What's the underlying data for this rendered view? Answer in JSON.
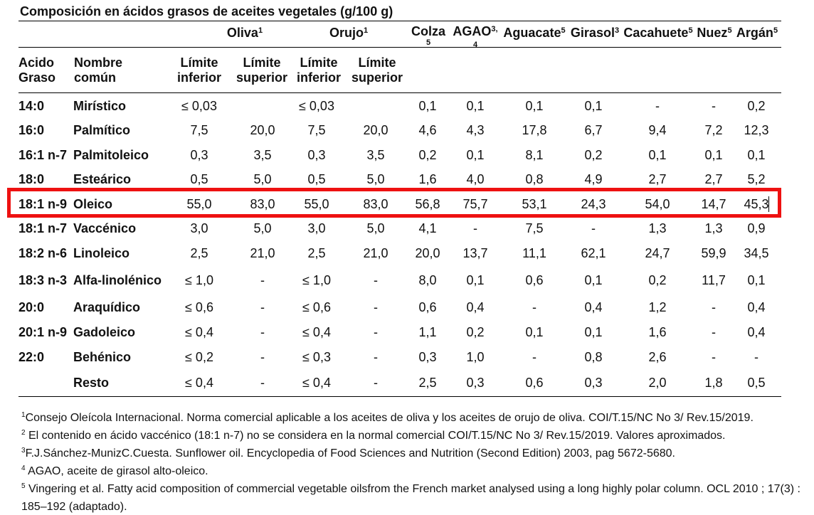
{
  "title": "Composición en ácidos grasos de aceites vegetales (g/100 g)",
  "header": {
    "oliva": {
      "label": "Oliva",
      "sup": "1"
    },
    "orujo": {
      "label": "Orujo",
      "sup": "1"
    },
    "colza": {
      "label": "Colza",
      "sub": "5"
    },
    "agao": {
      "label": "AGAO",
      "sup": "3,",
      "sub": "4"
    },
    "aguacate": {
      "label": "Aguacate",
      "sup": "5"
    },
    "girasol": {
      "label": "Girasol",
      "sup": "3"
    },
    "cacahuete": {
      "label": "Cacahuete",
      "sup": "5"
    },
    "nuez": {
      "label": "Nuez",
      "sup": "5"
    },
    "argan": {
      "label": "Argán",
      "sup": "5"
    },
    "acido1": "Acido",
    "acido2": "Graso",
    "nombre1": "Nombre",
    "nombre2": "común",
    "lim_inf1": "Límite",
    "lim_inf2": "inferior",
    "lim_sup1": "Límite",
    "lim_sup2": "superior"
  },
  "rows": [
    {
      "code": "14:0",
      "name": "Mirístico",
      "v": [
        "≤ 0,03",
        "",
        "≤ 0,03",
        "",
        "0,1",
        "0,1",
        "0,1",
        "0,1",
        "-",
        "-",
        "0,2"
      ]
    },
    {
      "code": "16:0",
      "name": "Palmítico",
      "v": [
        "7,5",
        "20,0",
        "7,5",
        "20,0",
        "4,6",
        "4,3",
        "17,8",
        "6,7",
        "9,4",
        "7,2",
        "12,3"
      ]
    },
    {
      "code": "16:1 n-7",
      "name": "Palmitoleico",
      "v": [
        "0,3",
        "3,5",
        "0,3",
        "3,5",
        "0,2",
        "0,1",
        "8,1",
        "0,2",
        "0,1",
        "0,1",
        "0,1"
      ]
    },
    {
      "code": "18:0",
      "name": "Esteárico",
      "v": [
        "0,5",
        "5,0",
        "0,5",
        "5,0",
        "1,6",
        "4,0",
        "0,8",
        "4,9",
        "2,7",
        "2,7",
        "5,2"
      ]
    },
    {
      "code": "18:1 n-9",
      "name": "Oleico",
      "v": [
        "55,0",
        "83,0",
        "55,0",
        "83,0",
        "56,8",
        "75,7",
        "53,1",
        "24,3",
        "54,0",
        "14,7",
        "45,3"
      ]
    },
    {
      "code": "18:1 n-7",
      "name": "Vaccénico",
      "v": [
        "3,0",
        "5,0",
        "3,0",
        "5,0",
        "4,1",
        "-",
        "7,5",
        "-",
        "1,3",
        "1,3",
        "0,9"
      ]
    },
    {
      "code": "18:2 n-6",
      "name": "Linoleico",
      "v": [
        "2,5",
        "21,0",
        "2,5",
        "21,0",
        "20,0",
        "13,7",
        "11,1",
        "62,1",
        "24,7",
        "59,9",
        "34,5"
      ]
    },
    {
      "code": "18:3 n-3",
      "name": "Alfa-linolénico",
      "v": [
        "≤ 1,0",
        "-",
        "≤ 1,0",
        "-",
        "8,0",
        "0,1",
        "0,6",
        "0,1",
        "0,2",
        "11,7",
        "0,1"
      ]
    },
    {
      "code": "20:0",
      "name": "Araquídico",
      "v": [
        "≤ 0,6",
        "-",
        "≤ 0,6",
        "-",
        "0,6",
        "0,4",
        "-",
        "0,4",
        "1,2",
        "-",
        "0,4"
      ]
    },
    {
      "code": "20:1 n-9",
      "name": "Gadoleico",
      "v": [
        "≤ 0,4",
        "-",
        "≤ 0,4",
        "-",
        "1,1",
        "0,2",
        "0,1",
        "0,1",
        "1,6",
        "-",
        "0,4"
      ]
    },
    {
      "code": "22:0",
      "name": "Behénico",
      "v": [
        "≤ 0,2",
        "-",
        "≤ 0,3",
        "-",
        "0,3",
        "1,0",
        "-",
        "0,8",
        "2,6",
        "-",
        "-"
      ]
    },
    {
      "code": "",
      "name": "Resto",
      "v": [
        "≤ 0,4",
        "-",
        "≤ 0,4",
        "-",
        "2,5",
        "0,3",
        "0,6",
        "0,3",
        "2,0",
        "1,8",
        "0,5"
      ]
    }
  ],
  "footnotes": [
    {
      "sup": "1",
      "text": "Consejo Oleícola Internacional. Norma comercial aplicable a los aceites de oliva y los aceites de orujo de oliva. COI/T.15/NC No 3/ Rev.15/2019."
    },
    {
      "sup": "2",
      "text": " El contenido en ácido vaccénico (18:1 n-7) no se considera en la normal comercial COI/T.15/NC No 3/ Rev.15/2019. Valores aproximados."
    },
    {
      "sup": "3",
      "text": "F.J.Sánchez-MunizC.Cuesta. Sunflower oil. Encyclopedia of Food Sciences and Nutrition (Second Edition) 2003, pag 5672-5680."
    },
    {
      "sup": "4",
      "text": " AGAO, aceite de girasol alto-oleico."
    },
    {
      "sup": "5",
      "text": " Vingering et al. Fatty acid composition of commercial vegetable oilsfrom the French market analysed using a long highly polar column. OCL 2010 ; 17(3) : 185–192 (adaptado)."
    }
  ],
  "highlight_color": "#ee1111"
}
